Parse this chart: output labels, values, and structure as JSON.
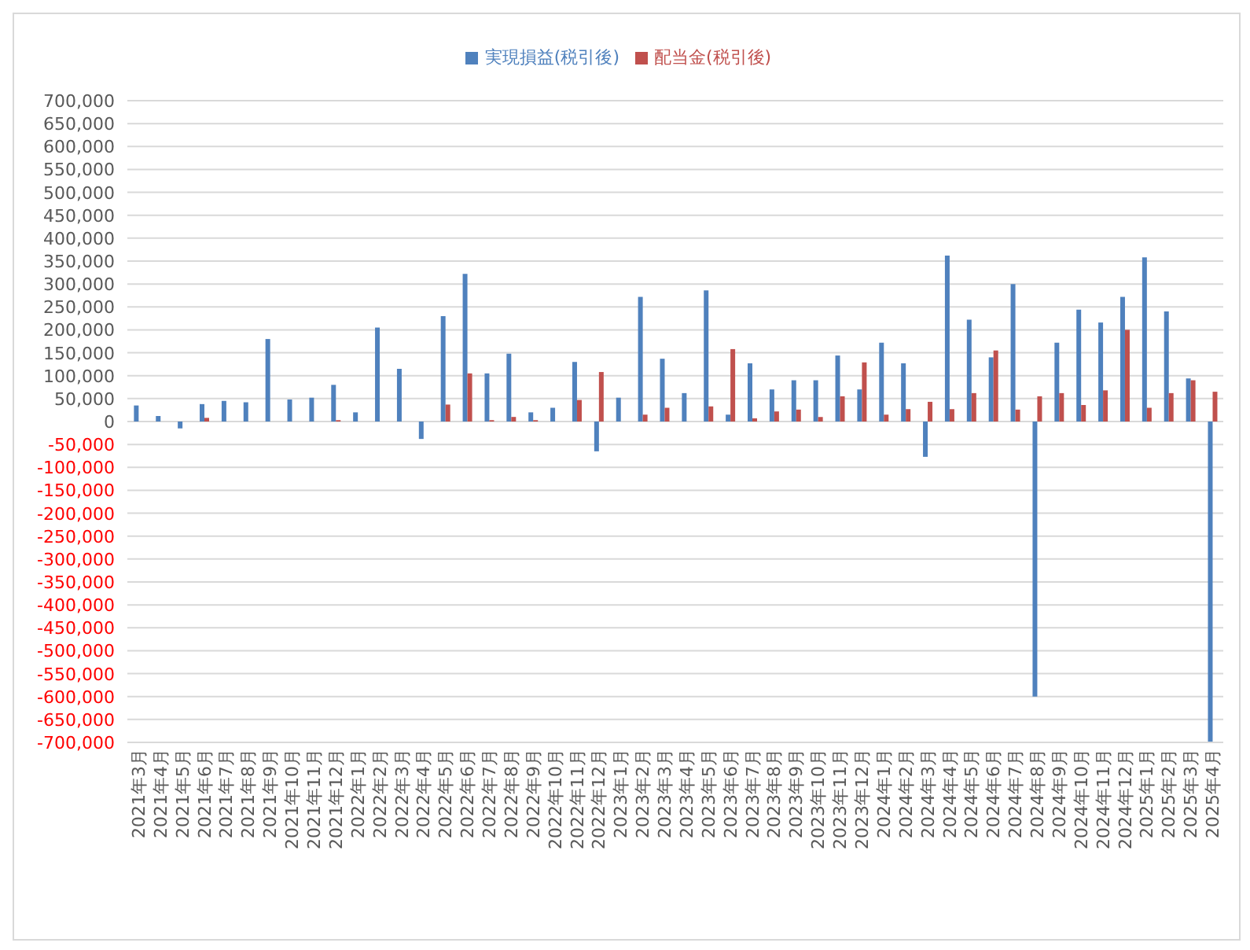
{
  "chart_data": {
    "type": "bar",
    "categories": [
      "2021年3月",
      "2021年4月",
      "2021年5月",
      "2021年6月",
      "2021年7月",
      "2021年8月",
      "2021年9月",
      "2021年10月",
      "2021年11月",
      "2021年12月",
      "2022年1月",
      "2022年2月",
      "2022年3月",
      "2022年4月",
      "2022年5月",
      "2022年6月",
      "2022年7月",
      "2022年8月",
      "2022年9月",
      "2022年10月",
      "2022年11月",
      "2022年12月",
      "2023年1月",
      "2023年2月",
      "2023年3月",
      "2023年4月",
      "2023年5月",
      "2023年6月",
      "2023年7月",
      "2023年8月",
      "2023年9月",
      "2023年10月",
      "2023年11月",
      "2023年12月",
      "2024年1月",
      "2024年2月",
      "2024年3月",
      "2024年4月",
      "2024年5月",
      "2024年6月",
      "2024年7月",
      "2024年8月",
      "2024年9月",
      "2024年10月",
      "2024年11月",
      "2024年12月",
      "2025年1月",
      "2025年2月",
      "2025年3月",
      "2025年4月"
    ],
    "series": [
      {
        "name": "実現損益(税引後)",
        "color": "#4f81bd",
        "values": [
          35000,
          12000,
          -15000,
          38000,
          45000,
          42000,
          180000,
          48000,
          52000,
          80000,
          20000,
          205000,
          115000,
          -38000,
          230000,
          322000,
          105000,
          148000,
          20000,
          30000,
          130000,
          -65000,
          52000,
          272000,
          137000,
          62000,
          286000,
          15000,
          127000,
          70000,
          90000,
          90000,
          144000,
          70000,
          172000,
          127000,
          -77000,
          362000,
          222000,
          140000,
          300000,
          -600000,
          172000,
          244000,
          216000,
          272000,
          358000,
          240000,
          94000,
          -700000
        ]
      },
      {
        "name": "配当金(税引後)",
        "color": "#c0504d",
        "values": [
          0,
          0,
          0,
          8000,
          0,
          0,
          0,
          0,
          0,
          3000,
          0,
          0,
          0,
          0,
          37000,
          105000,
          3000,
          10000,
          3000,
          0,
          47000,
          108000,
          0,
          15000,
          30000,
          0,
          33000,
          158000,
          7000,
          22000,
          26000,
          10000,
          55000,
          129000,
          15000,
          27000,
          43000,
          27000,
          62000,
          155000,
          26000,
          55000,
          62000,
          36000,
          68000,
          200000,
          30000,
          62000,
          90000,
          65000
        ]
      }
    ],
    "ylim": [
      -700000,
      700000
    ],
    "yticks": [
      {
        "value": -700000,
        "label": "-700,000"
      },
      {
        "value": -650000,
        "label": "-650,000"
      },
      {
        "value": -600000,
        "label": "-600,000"
      },
      {
        "value": -550000,
        "label": "-550,000"
      },
      {
        "value": -500000,
        "label": "-500,000"
      },
      {
        "value": -450000,
        "label": "-450,000"
      },
      {
        "value": -400000,
        "label": "-400,000"
      },
      {
        "value": -350000,
        "label": "-350,000"
      },
      {
        "value": -300000,
        "label": "-300,000"
      },
      {
        "value": -250000,
        "label": "-250,000"
      },
      {
        "value": -200000,
        "label": "-200,000"
      },
      {
        "value": -150000,
        "label": "-150,000"
      },
      {
        "value": -100000,
        "label": "-100,000"
      },
      {
        "value": -50000,
        "label": "-50,000"
      },
      0,
      {
        "value": 50000,
        "label": "50,000"
      },
      {
        "value": 100000,
        "label": "100,000"
      },
      {
        "value": 150000,
        "label": "150,000"
      },
      {
        "value": 200000,
        "label": "200,000"
      },
      {
        "value": 250000,
        "label": "250,000"
      },
      {
        "value": 300000,
        "label": "300,000"
      },
      {
        "value": 350000,
        "label": "350,000"
      },
      {
        "value": 400000,
        "label": "400,000"
      },
      {
        "value": 450000,
        "label": "450,000"
      },
      {
        "value": 500000,
        "label": "500,000"
      },
      {
        "value": 550000,
        "label": "550,000"
      },
      {
        "value": 600000,
        "label": "600,000"
      },
      {
        "value": 650000,
        "label": "650,000"
      },
      {
        "value": 700000,
        "label": "700,000"
      }
    ],
    "grid": "y",
    "legend": "top"
  }
}
